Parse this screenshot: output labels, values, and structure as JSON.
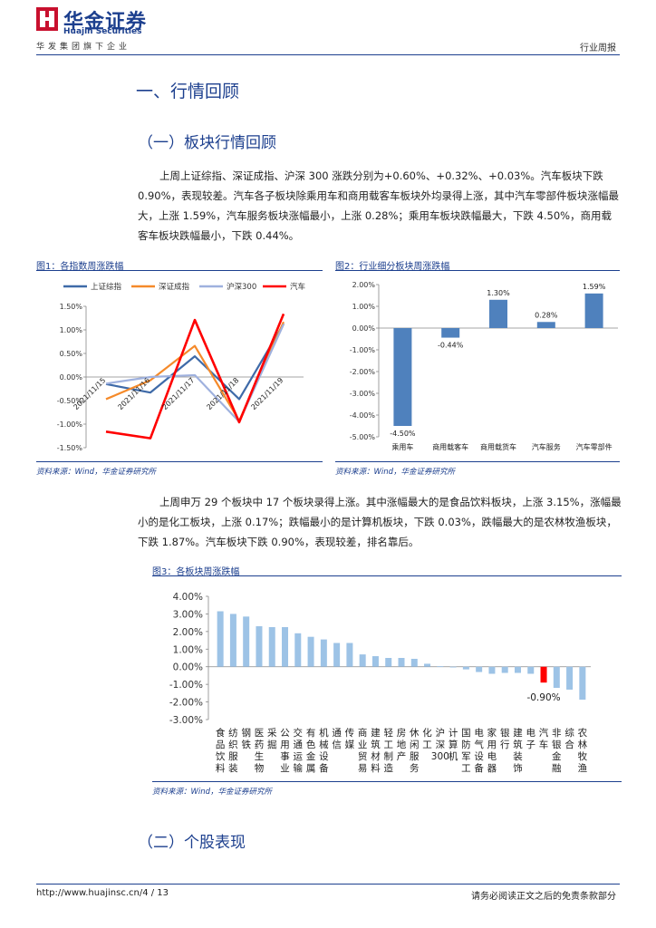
{
  "header": {
    "brand_cn": "华金证券",
    "brand_en": "Huajin Securities",
    "tagline": "华发集团旗下企业",
    "report_type": "行业周报"
  },
  "section1": {
    "title": "一、行情回顾"
  },
  "subsection1": {
    "title": "（一）板块行情回顾"
  },
  "para1": "上周上证综指、深证成指、沪深 300 涨跌分别为+0.60%、+0.32%、+0.03%。汽车板块下跌 0.90%，表现较差。汽车各子板块除乘用车和商用载客车板块外均录得上涨，其中汽车零部件板块涨幅最大，上涨 1.59%，汽车服务板块涨幅最小，上涨 0.28%；乘用车板块跌幅最大，下跌 4.50%，商用载客车板块跌幅最小，下跌 0.44%。",
  "fig1": {
    "caption": "图1：各指数周涨跌幅",
    "source": "资料来源：Wind，华金证券研究所"
  },
  "fig2": {
    "caption": "图2：行业细分板块周涨跌幅",
    "source": "资料来源：Wind，华金证券研究所"
  },
  "para2": "上周申万 29 个板块中 17 个板块录得上涨。其中涨幅最大的是食品饮料板块，上涨 3.15%，涨幅最小的是化工板块，上涨 0.17%；跌幅最小的是计算机板块，下跌 0.03%，跌幅最大的是农林牧渔板块，下跌 1.87%。汽车板块下跌 0.90%，表现较差，排名靠后。",
  "fig3": {
    "caption": "图3：各板块周涨跌幅",
    "source": "资料来源：Wind，华金证券研究所"
  },
  "subsection2": {
    "title": "（二）个股表现"
  },
  "footer": {
    "url": "http://www.huajinsc.cn/4 / 13",
    "disclaimer": "请务必阅读正文之后的免责条款部分"
  },
  "colors": {
    "brand": "#1c3f8e",
    "bar": "#4f81bd",
    "bar_light": "#9dc3e6",
    "highlight": "#ff0000",
    "sh": "#3e6aa8",
    "sz": "#f58a2a",
    "hs300": "#9fb1de",
    "auto": "#ff0000"
  },
  "chart_data": [
    {
      "type": "line",
      "x": [
        "2021/11/15",
        "2021/11/16",
        "2021/11/17",
        "2021/11/18",
        "2021/11/19"
      ],
      "series": [
        {
          "name": "上证综指",
          "values": [
            -0.15,
            -0.33,
            0.44,
            -0.47,
            1.13
          ]
        },
        {
          "name": "深证成指",
          "values": [
            -0.47,
            -0.07,
            0.66,
            -0.93,
            1.17
          ]
        },
        {
          "name": "沪深300",
          "values": [
            -0.14,
            0.0,
            0.04,
            -0.95,
            1.12
          ]
        },
        {
          "name": "汽车",
          "values": [
            -1.16,
            -1.3,
            1.21,
            -0.96,
            1.34
          ]
        }
      ],
      "ylim": [
        -1.5,
        1.5
      ],
      "yticks": [
        "1.50%",
        "1.00%",
        "0.50%",
        "0.00%",
        "-0.50%",
        "-1.00%",
        "-1.50%"
      ],
      "legend": "top"
    },
    {
      "type": "bar",
      "categories": [
        "乘用车",
        "商用载客车",
        "商用载货车",
        "汽车服务",
        "汽车零部件"
      ],
      "values": [
        -4.5,
        -0.44,
        1.3,
        0.28,
        1.59
      ],
      "data_labels": [
        "-4.50%",
        "-0.44%",
        "1.30%",
        "0.28%",
        "1.59%"
      ],
      "ylim": [
        -5,
        2
      ],
      "yticks": [
        "2.00%",
        "1.00%",
        "0.00%",
        "-1.00%",
        "-2.00%",
        "-3.00%",
        "-4.00%",
        "-5.00%"
      ]
    },
    {
      "type": "bar",
      "categories": [
        "食品饮料",
        "纺织服装",
        "钢铁",
        "医药生物",
        "采掘",
        "公用事业",
        "交通运输",
        "有色金属",
        "机械设备",
        "通信",
        "传媒",
        "商业贸易",
        "建筑材料",
        "轻工制造",
        "房地产",
        "休闲服务",
        "化工",
        "沪深300",
        "计算机",
        "国防军工",
        "电气设备",
        "家用电器",
        "银行",
        "建筑装饰",
        "电子",
        "汽车",
        "非银金融",
        "综合",
        "农林牧渔"
      ],
      "values": [
        3.15,
        3.0,
        2.85,
        2.3,
        2.25,
        2.25,
        1.9,
        1.7,
        1.55,
        1.35,
        1.35,
        0.7,
        0.6,
        0.5,
        0.5,
        0.45,
        0.17,
        0.03,
        -0.03,
        -0.15,
        -0.3,
        -0.4,
        -0.35,
        -0.35,
        -0.4,
        -0.9,
        -1.2,
        -1.3,
        -1.87
      ],
      "highlight": "汽车",
      "highlight_label": "-0.90%",
      "ylim": [
        -3,
        4
      ],
      "yticks": [
        "4.00%",
        "3.00%",
        "2.00%",
        "1.00%",
        "0.00%",
        "-1.00%",
        "-2.00%",
        "-3.00%"
      ]
    }
  ]
}
